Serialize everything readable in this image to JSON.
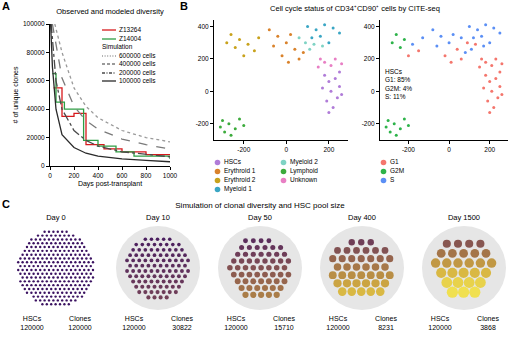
{
  "chart_data": [
    {
      "type": "line",
      "label": "A",
      "title": "Observed and modeled diversity",
      "x_label": "Days post-transplant",
      "y_label": "# of unique clones",
      "xlim": [
        0,
        1000
      ],
      "xticks": [
        0,
        200,
        400,
        600,
        800,
        1000
      ],
      "ylim": [
        0,
        100000
      ],
      "yticks": [
        0,
        20000,
        40000,
        60000,
        80000,
        100000
      ],
      "grid": false,
      "legend": "upper right",
      "series": [
        {
          "name": "Z13264",
          "type": "step",
          "color": "#d7191c",
          "line_style": "solid",
          "x": [
            30,
            100,
            200,
            300,
            450,
            600,
            800,
            1000
          ],
          "values": [
            55000,
            35000,
            37000,
            15000,
            12000,
            10000,
            8000,
            8000
          ]
        },
        {
          "name": "Z14004",
          "type": "step",
          "color": "#2e9e44",
          "line_style": "solid",
          "x": [
            20,
            50,
            120,
            280,
            400,
            550,
            700,
            1000
          ],
          "values": [
            65000,
            45000,
            40000,
            18000,
            14000,
            10000,
            7000,
            5000
          ]
        }
      ],
      "simulation": {
        "title": "Simulation",
        "series": [
          {
            "name": "600000 cells",
            "type": "line",
            "color": "#9a9a9a",
            "line_style": "dot",
            "x": [
              40,
              100,
              200,
              300,
              400,
              600,
              800,
              1000
            ],
            "values": [
              100000,
              80000,
              55000,
              42000,
              34000,
              25000,
              20000,
              17000
            ]
          },
          {
            "name": "400000 cells",
            "type": "line",
            "color": "#7a7a7a",
            "line_style": "dash",
            "x": [
              20,
              100,
              200,
              300,
              400,
              600,
              800,
              1000
            ],
            "values": [
              100000,
              62000,
              42000,
              32000,
              26000,
              19000,
              15000,
              12000
            ]
          },
          {
            "name": "200000 cells",
            "type": "line",
            "color": "#4a4a4a",
            "line_style": "dashdot",
            "x": [
              10,
              50,
              100,
              200,
              300,
              400,
              600,
              800,
              1000
            ],
            "values": [
              100000,
              60000,
              40000,
              25000,
              18000,
              14000,
              10000,
              8000,
              6500
            ]
          },
          {
            "name": "100000 cells",
            "type": "line",
            "color": "#2a2a2a",
            "line_style": "solid",
            "x": [
              5,
              20,
              50,
              100,
              200,
              300,
              400,
              600,
              800,
              1000
            ],
            "values": [
              100000,
              70000,
              40000,
              22000,
              13000,
              9000,
              7000,
              5000,
              4000,
              3000
            ]
          }
        ]
      }
    },
    {
      "type": "scatter",
      "label": "B",
      "title": "Cell cycle status of CD34⁺CD90⁺ cells by CITE-seq",
      "xlim": [
        -340,
        290
      ],
      "xticks": [
        -200,
        0,
        200
      ],
      "ylim": [
        -300,
        440
      ],
      "yticks": [
        -200,
        0,
        200,
        400
      ],
      "grid": false,
      "legend": "bottom",
      "marker": "circle",
      "series": [
        {
          "name": "HSCs",
          "color": "#b07cd8",
          "x": [
            180,
            200,
            230,
            250,
            210,
            240,
            190,
            220,
            260,
            170,
            250,
            200
          ],
          "values": [
            100,
            60,
            80,
            30,
            0,
            -40,
            -60,
            -100,
            -20,
            20,
            120,
            -130
          ]
        },
        {
          "name": "Erythroid 1",
          "color": "#d9822b",
          "x": [
            -80,
            -40,
            0,
            40,
            -20,
            60,
            20,
            -60,
            80,
            10
          ],
          "values": [
            380,
            340,
            300,
            260,
            220,
            200,
            350,
            280,
            240,
            180
          ]
        },
        {
          "name": "Erythroid 2",
          "color": "#c8a21c",
          "x": [
            -260,
            -220,
            -180,
            -150,
            -200,
            -240,
            -130,
            -280
          ],
          "values": [
            350,
            320,
            290,
            250,
            220,
            270,
            330,
            300
          ]
        },
        {
          "name": "Myeloid 1",
          "color": "#3aa6c4",
          "x": [
            100,
            140,
            180,
            220,
            250,
            160,
            120,
            200
          ],
          "values": [
            400,
            380,
            410,
            390,
            360,
            340,
            330,
            300
          ]
        },
        {
          "name": "Myeloid 2",
          "color": "#7fd3c4",
          "x": [
            90,
            130,
            60,
            170,
            110
          ],
          "values": [
            300,
            290,
            330,
            280,
            260
          ]
        },
        {
          "name": "Lymphoid",
          "color": "#3cab3c",
          "x": [
            -300,
            -270,
            -240,
            -290,
            -220,
            -260,
            -310,
            -200
          ],
          "values": [
            -180,
            -200,
            -230,
            -250,
            -170,
            -270,
            -220,
            -210
          ]
        },
        {
          "name": "Unknown",
          "color": "#e87fc4",
          "x": [
            150,
            180,
            210,
            230,
            160,
            260
          ],
          "values": [
            150,
            180,
            160,
            200,
            200,
            170
          ]
        }
      ]
    },
    {
      "type": "scatter",
      "xlim": [
        -340,
        290
      ],
      "xticks": [
        -200,
        0,
        200
      ],
      "ylim": [
        -300,
        440
      ],
      "yticks": [
        -200,
        0,
        200,
        400
      ],
      "grid": false,
      "legend": "bottom",
      "marker": "circle",
      "annotation": [
        "HSCs",
        "G1: 85%",
        "G2M: 4%",
        "S: 11%"
      ],
      "series": [
        {
          "name": "G1",
          "color": "#f4766d",
          "x": [
            180,
            200,
            230,
            250,
            210,
            240,
            190,
            220,
            260,
            170,
            250,
            200,
            150,
            180,
            210,
            230,
            160,
            260,
            90,
            130,
            -150,
            -200,
            40,
            -20,
            10,
            60
          ],
          "values": [
            100,
            60,
            80,
            30,
            0,
            -40,
            -60,
            -100,
            -20,
            20,
            120,
            -130,
            150,
            180,
            160,
            200,
            200,
            170,
            300,
            290,
            250,
            220,
            260,
            220,
            180,
            200
          ]
        },
        {
          "name": "G2M",
          "color": "#2db34a",
          "x": [
            -300,
            -270,
            -240,
            -290,
            -220,
            -260,
            -310,
            -200,
            -260,
            -220,
            -280,
            -240
          ],
          "values": [
            -180,
            -200,
            -230,
            -250,
            -170,
            -270,
            -220,
            -210,
            350,
            320,
            300,
            270
          ]
        },
        {
          "name": "S",
          "color": "#5b8ff5",
          "x": [
            -80,
            -40,
            0,
            20,
            -60,
            80,
            100,
            140,
            180,
            220,
            250,
            160,
            120,
            200,
            60,
            170,
            110,
            -180,
            -130
          ],
          "values": [
            380,
            340,
            300,
            350,
            280,
            240,
            400,
            380,
            410,
            390,
            360,
            340,
            330,
            300,
            330,
            280,
            260,
            290,
            330
          ]
        }
      ]
    }
  ],
  "simulation_panel": {
    "label": "C",
    "title": "Simulation of clonal diversity and HSC pool size",
    "hscs_label": "HSCs",
    "clones_label": "Clones",
    "frames": [
      {
        "day": "Day 0",
        "hscs": 120000,
        "clones": 120000
      },
      {
        "day": "Day 10",
        "hscs": 120000,
        "clones": 30822
      },
      {
        "day": "Day 50",
        "hscs": 120000,
        "clones": 15710
      },
      {
        "day": "Day 400",
        "hscs": 120000,
        "clones": 8231
      },
      {
        "day": "Day 1500",
        "hscs": 120000,
        "clones": 3868
      }
    ]
  }
}
